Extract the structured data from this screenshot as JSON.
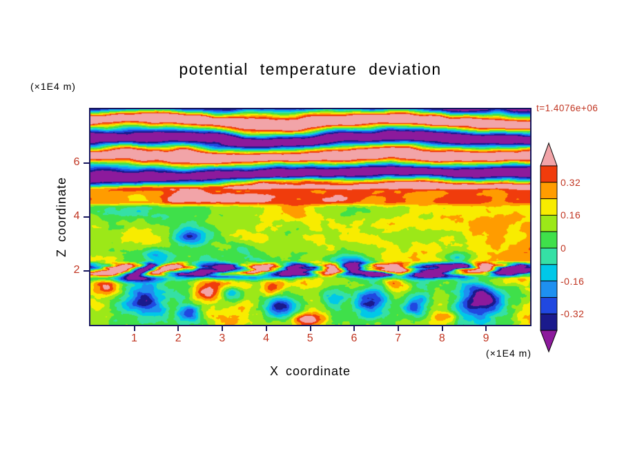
{
  "colors": {
    "background": "#ffffff",
    "ink": "#000000",
    "annotation_red": "#c0331f",
    "frame": "#16165e"
  },
  "chart_data": {
    "type": "heatmap",
    "title": "potential temperature deviation",
    "time_label": "t=1.4076e+06",
    "x_label": "X coordinate",
    "y_label": "Z coordinate",
    "x_unit": "(×1E4 m)",
    "y_unit": "(×1E4 m)",
    "x_range": [
      0,
      10
    ],
    "z_range": [
      0,
      8
    ],
    "x_ticks": [
      1,
      2,
      3,
      4,
      5,
      6,
      7,
      8,
      9
    ],
    "z_ticks": [
      2,
      4,
      6
    ],
    "levels": [
      -0.4,
      -0.32,
      -0.24,
      -0.16,
      -0.08,
      0,
      0.08,
      0.16,
      0.24,
      0.32,
      0.4
    ],
    "palette": {
      "under": "#8c1a9c",
      "segments": [
        "#1a1a8c",
        "#2048e0",
        "#1e90f0",
        "#00c8e8",
        "#35e0a5",
        "#3fe04a",
        "#9ce818",
        "#f8ec00",
        "#ff9c00",
        "#f03c0c"
      ],
      "over": "#f2a4a8"
    },
    "colorbar_labels": [
      {
        "text": "0.32",
        "value": 0.32
      },
      {
        "text": "0.16",
        "value": 0.16
      },
      {
        "text": "0",
        "value": 0
      },
      {
        "text": "-0.16",
        "value": -0.16
      },
      {
        "text": "-0.32",
        "value": -0.32
      }
    ],
    "field_model": {
      "layers": [
        {
          "type": "noise",
          "zmin": -0.5,
          "zmax": 1.82,
          "base": 0.16,
          "amp": 0.26,
          "sx": 1.1,
          "sz": 1.1,
          "amp2": 0.12,
          "sx2": 3.0,
          "sz2": 3.0,
          "seed": 1
        },
        {
          "type": "xwaves",
          "zmin": 1.82,
          "zmax": 2.28,
          "amp": 0.55,
          "period": 1.7,
          "pnoise": 3.5,
          "nsx": 0.9,
          "nsz": 2.8,
          "phase0": 0.6,
          "rough": 0.05,
          "seed": 2
        },
        {
          "type": "noise",
          "zmin": 2.28,
          "zmax": 4.45,
          "base": 0.09,
          "amp": 0.22,
          "sx": 0.85,
          "sz": 1.0,
          "amp2": 0.1,
          "sx2": 2.4,
          "sz2": 2.6,
          "xbias": 0.07,
          "seed": 3
        },
        {
          "type": "noise",
          "zmin": 4.45,
          "zmax": 5.05,
          "base": 0.3,
          "amp": 0.2,
          "sx": 1.1,
          "sz": 1.8,
          "seed": 4
        },
        {
          "type": "zwaves",
          "zmin": 5.05,
          "zmax": 8.5,
          "amp": 0.55,
          "period": 1.25,
          "pnoise": 2.2,
          "nsx": 0.35,
          "nsz": 0.5,
          "phase0": 1.2,
          "rough": 0.08,
          "seed": 5
        }
      ],
      "blobs": [
        {
          "x": 1.27,
          "z": 0.85,
          "rx": 0.5,
          "rz": 0.6,
          "amp": -0.55
        },
        {
          "x": 2.3,
          "z": 0.45,
          "rx": 0.3,
          "rz": 0.35,
          "amp": -0.35
        },
        {
          "x": 3.2,
          "z": 1.15,
          "rx": 0.25,
          "rz": 0.3,
          "amp": -0.3
        },
        {
          "x": 4.35,
          "z": 0.7,
          "rx": 0.38,
          "rz": 0.5,
          "amp": -0.5
        },
        {
          "x": 5.55,
          "z": 0.95,
          "rx": 0.3,
          "rz": 0.4,
          "amp": -0.38
        },
        {
          "x": 6.4,
          "z": 0.9,
          "rx": 0.45,
          "rz": 0.55,
          "amp": -0.52
        },
        {
          "x": 7.35,
          "z": 0.65,
          "rx": 0.28,
          "rz": 0.35,
          "amp": -0.35
        },
        {
          "x": 8.85,
          "z": 0.9,
          "rx": 0.55,
          "rz": 0.65,
          "amp": -0.6
        },
        {
          "x": 0.8,
          "z": 1.7,
          "rx": 0.8,
          "rz": 0.12,
          "amp": -0.4
        },
        {
          "x": 3.3,
          "z": 1.78,
          "rx": 1.6,
          "rz": 0.14,
          "amp": -0.45
        },
        {
          "x": 7.6,
          "z": 1.82,
          "rx": 1.4,
          "rz": 0.13,
          "amp": -0.45
        },
        {
          "x": 1.5,
          "z": 2.6,
          "rx": 0.3,
          "rz": 0.25,
          "amp": -0.25
        },
        {
          "x": 2.3,
          "z": 3.3,
          "rx": 0.35,
          "rz": 0.3,
          "amp": -0.3
        },
        {
          "x": 6.0,
          "z": 2.35,
          "rx": 0.5,
          "rz": 0.2,
          "amp": -0.3
        },
        {
          "x": 8.3,
          "z": 2.5,
          "rx": 0.4,
          "rz": 0.25,
          "amp": -0.3
        },
        {
          "x": 0.35,
          "z": 1.45,
          "rx": 0.3,
          "rz": 0.35,
          "amp": 0.26
        },
        {
          "x": 2.62,
          "z": 1.3,
          "rx": 0.3,
          "rz": 0.42,
          "amp": 0.32
        },
        {
          "x": 4.1,
          "z": 1.35,
          "rx": 0.27,
          "rz": 0.4,
          "amp": 0.3
        },
        {
          "x": 5.0,
          "z": 0.22,
          "rx": 0.4,
          "rz": 0.25,
          "amp": 0.32
        },
        {
          "x": 6.9,
          "z": 1.5,
          "rx": 0.25,
          "rz": 0.3,
          "amp": 0.22
        },
        {
          "x": 8.1,
          "z": 0.3,
          "rx": 0.3,
          "rz": 0.2,
          "amp": 0.2
        },
        {
          "x": 4.2,
          "z": 5.35,
          "rx": 1.8,
          "rz": 0.12,
          "amp": 0.25
        },
        {
          "x": 2.9,
          "z": 4.75,
          "rx": 0.9,
          "rz": 0.18,
          "amp": 0.15
        }
      ]
    }
  }
}
